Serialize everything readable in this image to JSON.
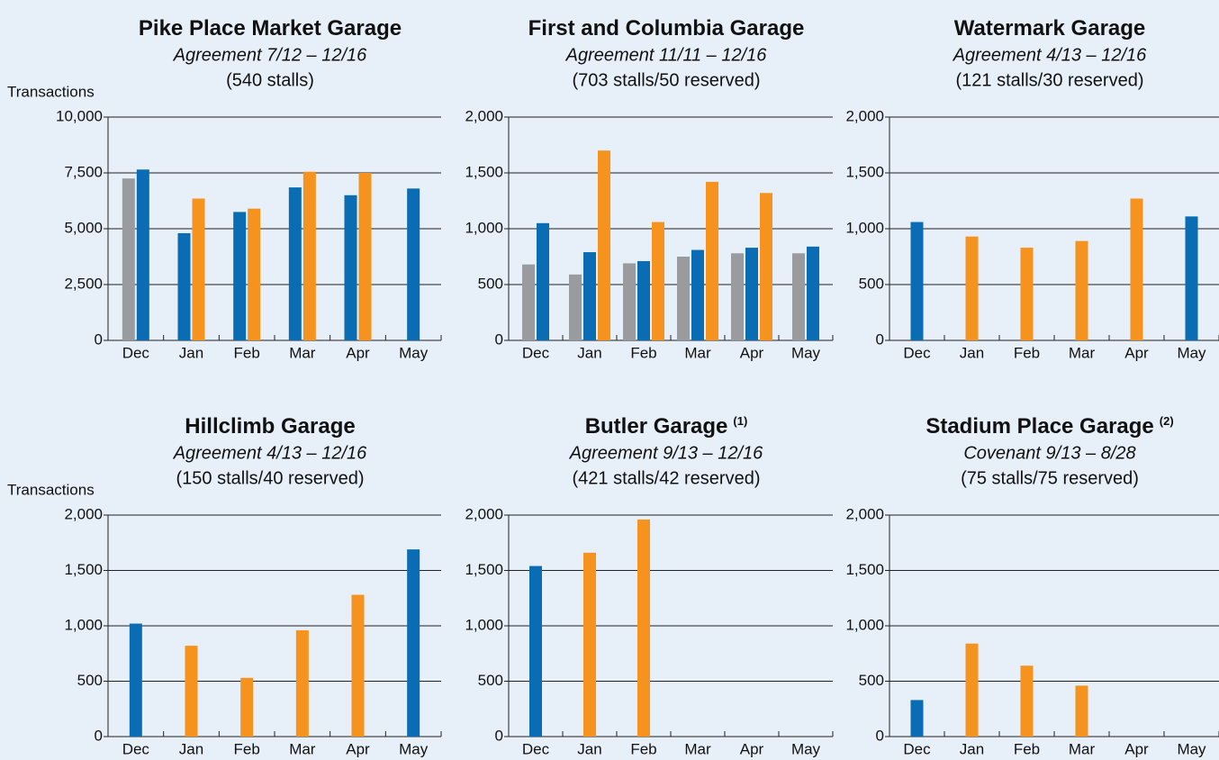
{
  "chart_data": [
    {
      "type": "bar",
      "title": "Pike Place Market Garage",
      "subtitle": "Agreement 7/12 – 12/16",
      "note": "(540 stalls)",
      "y_label": "Transactions",
      "categories": [
        "Dec",
        "Jan",
        "Feb",
        "Mar",
        "Apr",
        "May"
      ],
      "series": [
        {
          "color": "#999b9e",
          "values": [
            7250,
            null,
            null,
            null,
            null,
            null
          ]
        },
        {
          "color": "#0a6db3",
          "values": [
            7650,
            4800,
            5750,
            6850,
            6500,
            6800
          ]
        },
        {
          "color": "#f6921e",
          "values": [
            null,
            6350,
            5900,
            7550,
            7500,
            null
          ]
        }
      ],
      "ylim": [
        0,
        10000
      ],
      "yticks": [
        0,
        {
          "value": 2500,
          "label": "2,500"
        },
        {
          "value": 5000,
          "label": "5,000"
        },
        {
          "value": 7500,
          "label": "7,500"
        },
        {
          "value": 10000,
          "label": "10,000"
        }
      ],
      "grid": true
    },
    {
      "type": "bar",
      "title": "First and Columbia Garage",
      "subtitle": "Agreement 11/11 – 12/16",
      "note": "(703 stalls/50 reserved)",
      "categories": [
        "Dec",
        "Jan",
        "Feb",
        "Mar",
        "Apr",
        "May"
      ],
      "series": [
        {
          "color": "#999b9e",
          "values": [
            680,
            590,
            690,
            750,
            780,
            780
          ]
        },
        {
          "color": "#0a6db3",
          "values": [
            1050,
            790,
            710,
            810,
            830,
            840
          ]
        },
        {
          "color": "#f6921e",
          "values": [
            null,
            1700,
            1060,
            1420,
            1320,
            null
          ]
        }
      ],
      "ylim": [
        0,
        2000
      ],
      "yticks": [
        0,
        500,
        {
          "value": 1000,
          "label": "1,000"
        },
        {
          "value": 1500,
          "label": "1,500"
        },
        {
          "value": 2000,
          "label": "2,000"
        }
      ],
      "grid": true
    },
    {
      "type": "bar",
      "title": "Watermark Garage",
      "subtitle": "Agreement 4/13 – 12/16",
      "note": "(121 stalls/30 reserved)",
      "categories": [
        "Dec",
        "Jan",
        "Feb",
        "Mar",
        "Apr",
        "May"
      ],
      "series": [
        {
          "color": "#0a6db3",
          "values": [
            1060,
            null,
            null,
            null,
            null,
            1110
          ]
        },
        {
          "color": "#f6921e",
          "values": [
            null,
            930,
            830,
            890,
            1270,
            null
          ]
        }
      ],
      "ylim": [
        0,
        2000
      ],
      "yticks": [
        0,
        500,
        {
          "value": 1000,
          "label": "1,000"
        },
        {
          "value": 1500,
          "label": "1,500"
        },
        {
          "value": 2000,
          "label": "2,000"
        }
      ],
      "grid": true
    },
    {
      "type": "bar",
      "title": "Hillclimb Garage",
      "subtitle": "Agreement 4/13 – 12/16",
      "note": "(150 stalls/40 reserved)",
      "y_label": "Transactions",
      "categories": [
        "Dec",
        "Jan",
        "Feb",
        "Mar",
        "Apr",
        "May"
      ],
      "series": [
        {
          "color": "#0a6db3",
          "values": [
            1020,
            null,
            null,
            null,
            null,
            1690
          ]
        },
        {
          "color": "#f6921e",
          "values": [
            null,
            820,
            530,
            960,
            1280,
            null
          ]
        }
      ],
      "ylim": [
        0,
        2000
      ],
      "yticks": [
        0,
        500,
        {
          "value": 1000,
          "label": "1,000"
        },
        {
          "value": 1500,
          "label": "1,500"
        },
        {
          "value": 2000,
          "label": "2,000"
        }
      ],
      "grid": true
    },
    {
      "type": "bar",
      "title": "Butler Garage",
      "title_note": "(1)",
      "subtitle": "Agreement 9/13 – 12/16",
      "note": "(421 stalls/42 reserved)",
      "categories": [
        "Dec",
        "Jan",
        "Feb",
        "Mar",
        "Apr",
        "May"
      ],
      "series": [
        {
          "color": "#0a6db3",
          "values": [
            1540,
            null,
            null,
            null,
            null,
            null
          ]
        },
        {
          "color": "#f6921e",
          "values": [
            null,
            1660,
            1960,
            null,
            null,
            null
          ]
        }
      ],
      "ylim": [
        0,
        2000
      ],
      "yticks": [
        0,
        500,
        {
          "value": 1000,
          "label": "1,000"
        },
        {
          "value": 1500,
          "label": "1,500"
        },
        {
          "value": 2000,
          "label": "2,000"
        }
      ],
      "grid": true
    },
    {
      "type": "bar",
      "title": "Stadium Place Garage",
      "title_note": "(2)",
      "subtitle": "Covenant 9/13 – 8/28",
      "note": "(75 stalls/75 reserved)",
      "categories": [
        "Dec",
        "Jan",
        "Feb",
        "Mar",
        "Apr",
        "May"
      ],
      "series": [
        {
          "color": "#0a6db3",
          "values": [
            330,
            null,
            null,
            null,
            null,
            null
          ]
        },
        {
          "color": "#f6921e",
          "values": [
            null,
            840,
            640,
            460,
            null,
            null
          ]
        }
      ],
      "ylim": [
        0,
        2000
      ],
      "yticks": [
        0,
        500,
        {
          "value": 1000,
          "label": "1,000"
        },
        {
          "value": 1500,
          "label": "1,500"
        },
        {
          "value": 2000,
          "label": "2,000"
        }
      ],
      "grid": true
    }
  ]
}
